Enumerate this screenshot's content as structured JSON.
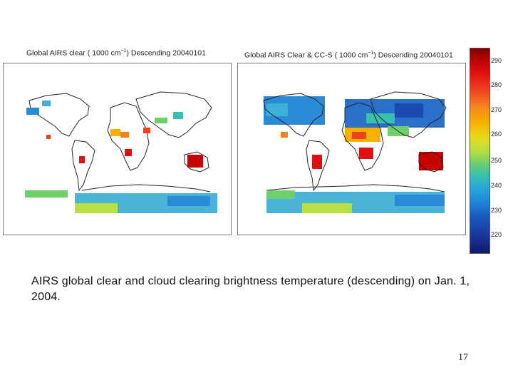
{
  "slide": {
    "left_map": {
      "title_prefix": "Global AIRS clear ( 1000 cm",
      "title_exponent": "−1",
      "title_suffix": ") Descending 20040101"
    },
    "right_map": {
      "title_prefix": "Global AIRS Clear & CC-S ( 1000 cm",
      "title_exponent": "−1",
      "title_suffix": ") Descending 20040101"
    },
    "colorbar": {
      "ticks": [
        "290",
        "280",
        "270",
        "260",
        "250",
        "240",
        "230",
        "220"
      ]
    },
    "caption": "AIRS global clear and cloud clearing brightness temperature (descending) on Jan. 1, 2004.",
    "page_number": "17"
  }
}
